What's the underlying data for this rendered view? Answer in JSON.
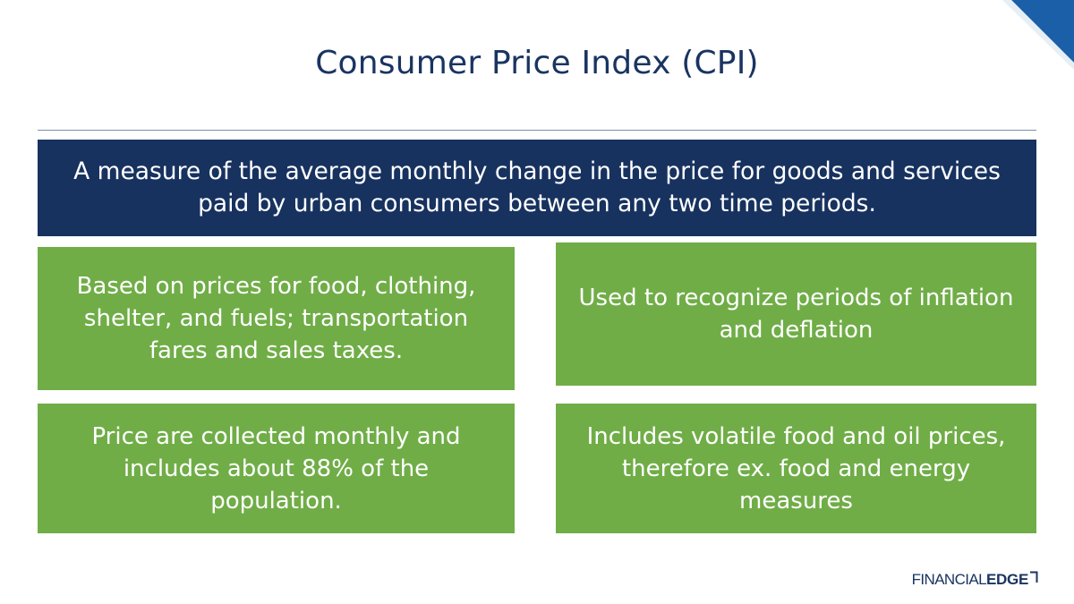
{
  "title": "Consumer Price Index (CPI)",
  "definition": "A measure of the average monthly change in the price for goods and services paid by urban consumers between any two time periods.",
  "boxes": [
    {
      "text": "Based on prices for food, clothing, shelter, and fuels; transportation fares and sales taxes."
    },
    {
      "text": "Used to recognize periods of inflation and deflation"
    },
    {
      "text": "Price are collected monthly and includes about 88% of the population."
    },
    {
      "text": "Includes volatile food and oil prices, therefore ex. food and energy measures"
    }
  ],
  "logo": {
    "light": "FINANCIAL",
    "bold": "EDGE"
  },
  "colors": {
    "navy": "#17325f",
    "green": "#70ad47",
    "accent_blue": "#1a5fa8"
  }
}
